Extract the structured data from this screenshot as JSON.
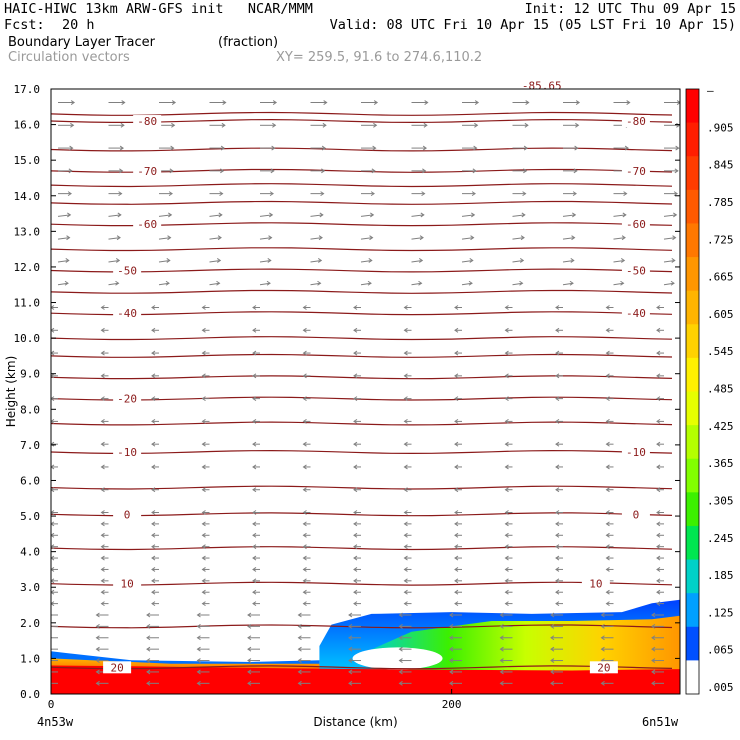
{
  "header": {
    "title": "HAIC-HIWC 13km ARW-GFS init   NCAR/MMM",
    "init": "Init: 12 UTC Thu 09 Apr 15",
    "fcst_label": "Fcst:",
    "fcst_value": "20 h",
    "valid": "Valid: 08 UTC Fri 10 Apr 15 (05 LST Fri 10 Apr 15)",
    "field_name": "Boundary Layer Tracer",
    "field_units": "(fraction)",
    "vector_label": "Circulation vectors",
    "xy_label": "XY= 259.5, 91.6 to 274.6,110.2"
  },
  "colors": {
    "contour": "#8b1a1a",
    "vector": "#808080"
  },
  "chart_data": {
    "type": "heatmap",
    "xlabel": "Distance (km)",
    "ylabel": "Height (km)",
    "xlim": [
      0,
      314
    ],
    "ylim": [
      0.0,
      17.0
    ],
    "x_ticks": [
      0,
      200
    ],
    "x_tick_labels": [
      "0",
      "200"
    ],
    "x_end_labels": [
      "4n53w",
      "6n51w"
    ],
    "y_ticks": [
      0.0,
      1.0,
      2.0,
      3.0,
      4.0,
      5.0,
      6.0,
      7.0,
      8.0,
      9.0,
      10.0,
      11.0,
      12.0,
      13.0,
      14.0,
      15.0,
      16.0,
      17.0
    ],
    "y_tick_labels": [
      "0.0",
      "1.0",
      "2.0",
      "3.0",
      "4.0",
      "5.0",
      "6.0",
      "7.0",
      "8.0",
      "9.0",
      "10.0",
      "11.0",
      "12.0",
      "13.0",
      "14.0",
      "15.0",
      "16.0",
      "17.0"
    ],
    "colorbar_labels": [
      "–",
      ".905",
      ".845",
      ".785",
      ".725",
      ".665",
      ".605",
      ".545",
      ".485",
      ".425",
      ".365",
      ".305",
      ".245",
      ".185",
      ".125",
      ".065",
      ".005"
    ],
    "colorbar_colors": [
      "#ff0000",
      "#ff1e00",
      "#ff3c00",
      "#ff5a00",
      "#ff7800",
      "#ff9600",
      "#ffb400",
      "#ffd200",
      "#fff000",
      "#e6ff00",
      "#b4ff00",
      "#82ff00",
      "#3cf000",
      "#00e650",
      "#00d2c8",
      "#00a0ff",
      "#0050ff",
      "#ffffff"
    ],
    "temperature_contours": [
      {
        "label": "-80",
        "height": 16.1,
        "label_x": [
          48,
          292
        ]
      },
      {
        "label": "-70",
        "height": 14.7,
        "label_x": [
          48,
          292
        ]
      },
      {
        "label": "-60",
        "height": 13.2,
        "label_x": [
          48,
          292
        ]
      },
      {
        "label": "-50",
        "height": 11.9,
        "label_x": [
          38,
          292
        ]
      },
      {
        "label": "-40",
        "height": 10.7,
        "label_x": [
          38,
          292
        ]
      },
      {
        "label": "-20",
        "height": 8.3,
        "label_x": [
          38,
          null
        ]
      },
      {
        "label": "-10",
        "height": 6.8,
        "label_x": [
          38,
          292
        ]
      },
      {
        "label": "0",
        "height": 5.05,
        "label_x": [
          38,
          292
        ]
      },
      {
        "label": "10",
        "height": 3.1,
        "label_x": [
          38,
          272
        ]
      },
      {
        "label": "20",
        "height": 0.75,
        "label_x": [
          33,
          276
        ]
      },
      {
        "label": "-85.65",
        "height": 17.1,
        "label_x": [
          245
        ]
      }
    ],
    "unlabeled_contour_heights": [
      16.3,
      15.3,
      14.3,
      13.8,
      12.5,
      11.3,
      10.0,
      9.5,
      8.9,
      7.6,
      5.8,
      4.1,
      1.9
    ]
  }
}
